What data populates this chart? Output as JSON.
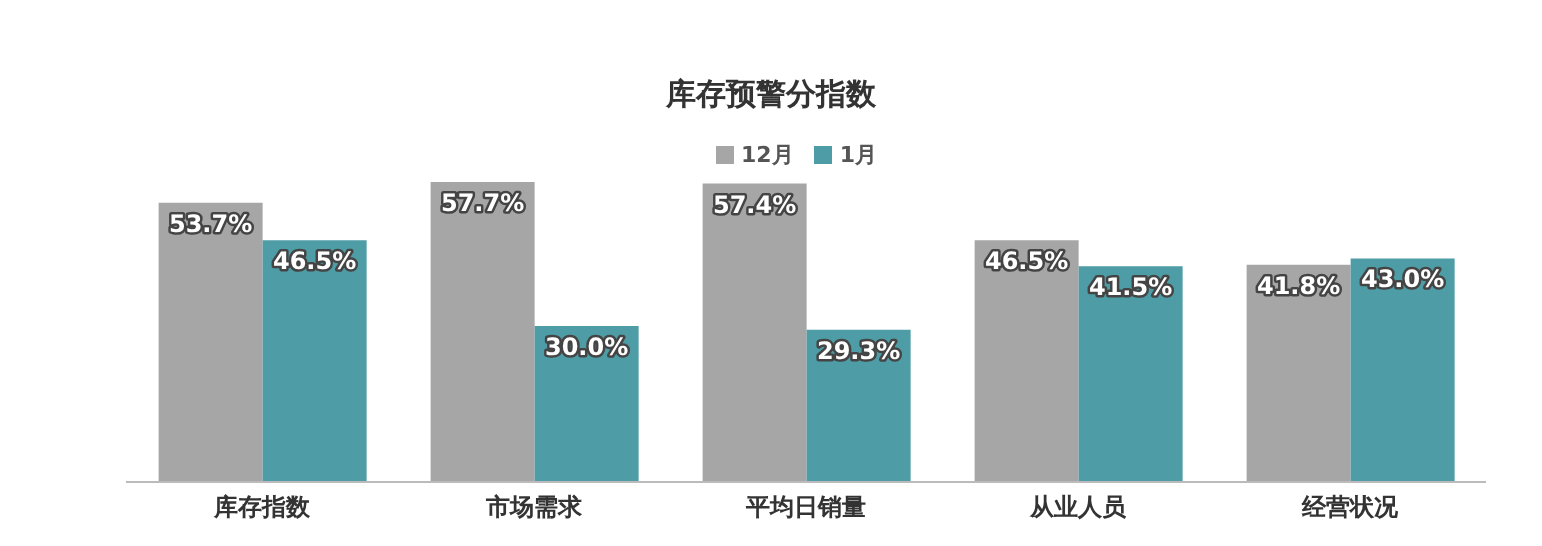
{
  "chart_data": {
    "type": "bar",
    "title": "库存预警分指数",
    "categories": [
      "库存指数",
      "市场需求",
      "平均日销量",
      "从业人员",
      "经营状况"
    ],
    "series": [
      {
        "name": "12月",
        "color": "#a6a6a6",
        "values": [
          53.7,
          57.7,
          57.4,
          46.5,
          41.8
        ],
        "value_labels": [
          "53.7%",
          "57.7%",
          "57.4%",
          "46.5%",
          "41.8%"
        ]
      },
      {
        "name": "1月",
        "color": "#4e9ca6",
        "values": [
          46.5,
          30.0,
          29.3,
          41.5,
          43.0
        ],
        "value_labels": [
          "46.5%",
          "30.0%",
          "29.3%",
          "41.5%",
          "43.0%"
        ]
      }
    ],
    "legend": "top",
    "grid": false
  }
}
